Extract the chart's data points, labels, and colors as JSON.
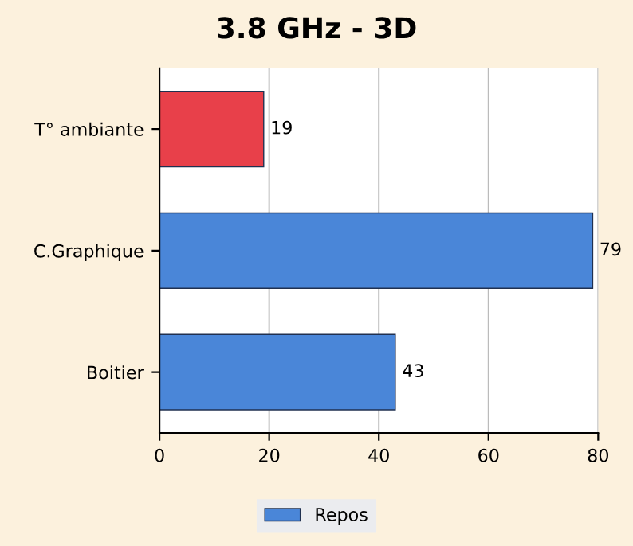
{
  "chart_data": {
    "type": "bar",
    "orientation": "horizontal",
    "title": "3.8 GHz - 3D",
    "categories": [
      "T° ambiante",
      "C.Graphique",
      "Boitier"
    ],
    "series": [
      {
        "name": "Repos",
        "color": "#4a86d8",
        "colors": [
          "#e8404a",
          "#4a86d8",
          "#4a86d8"
        ],
        "values": [
          19,
          79,
          43
        ]
      }
    ],
    "xlim": [
      0,
      80
    ],
    "xticks": [
      0,
      20,
      40,
      60,
      80
    ],
    "grid": "x",
    "data_labels": true,
    "legend": "bottom"
  }
}
